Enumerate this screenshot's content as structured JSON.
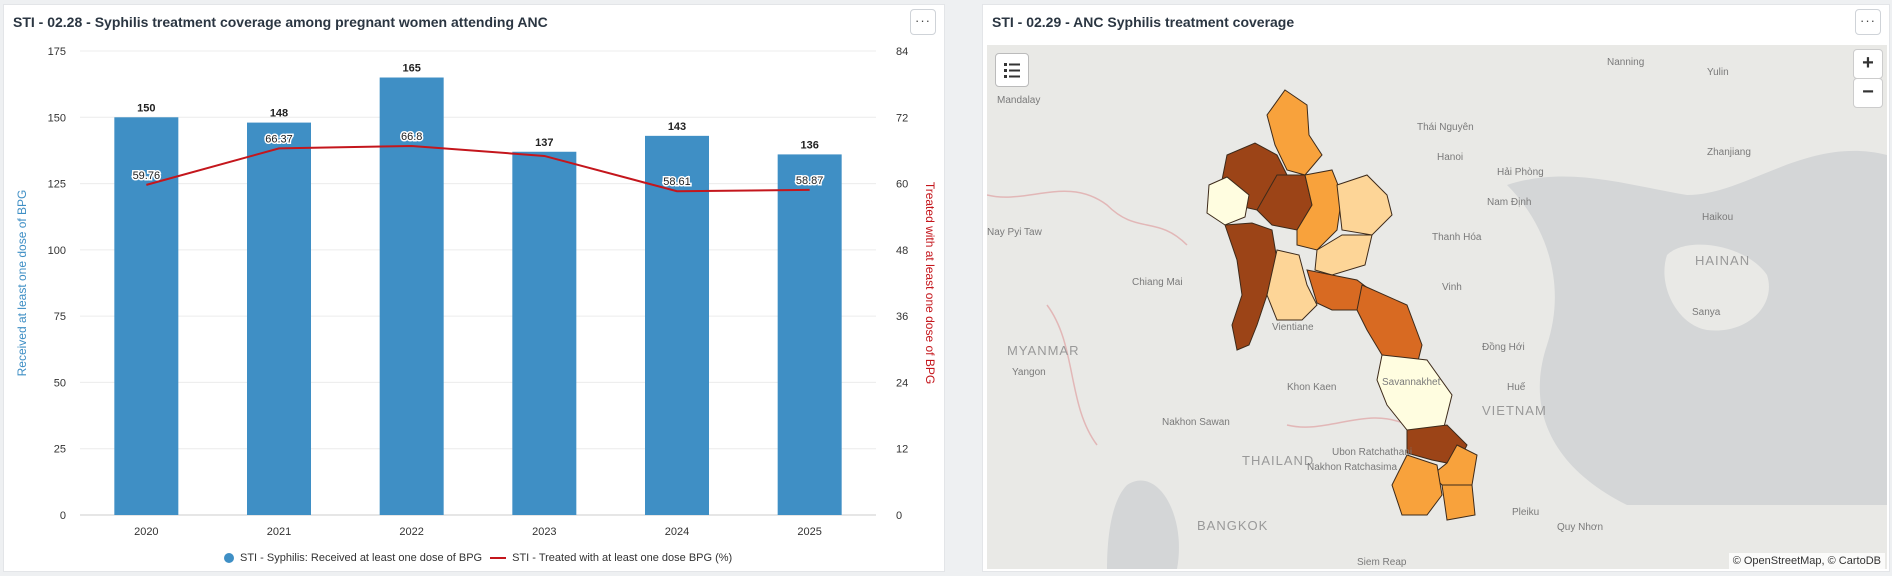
{
  "left_panel": {
    "title": "STI - 02.28 - Syphilis treatment coverage among pregnant women attending ANC",
    "menu_label": "···",
    "legend": {
      "series1": "STI - Syphilis: Received at least one dose of BPG",
      "series2": "STI - Treated with at least one dose BPG (%)"
    }
  },
  "chart_data": {
    "type": "bar",
    "categories": [
      "2020",
      "2021",
      "2022",
      "2023",
      "2024",
      "2025"
    ],
    "series": [
      {
        "name": "STI - Syphilis: Received at least one dose of BPG",
        "type": "bar",
        "axis": "left",
        "values": [
          150,
          148,
          165,
          137,
          143,
          136
        ],
        "color": "#3f8fc5"
      },
      {
        "name": "STI - Treated with at least one dose BPG (%)",
        "type": "line",
        "axis": "right",
        "values": [
          59.76,
          66.37,
          66.8,
          null,
          58.61,
          58.87
        ],
        "color": "#c4161c"
      }
    ],
    "line_point_2023": 65,
    "ylabel": "Received at least one dose of BPG",
    "ylabel_right": "Treated with at least one dose of BPG",
    "ylim": [
      0,
      175
    ],
    "yticks": [
      0,
      25,
      50,
      75,
      100,
      125,
      150,
      175
    ],
    "ylim_right": [
      0,
      84
    ],
    "yticks_right": [
      0,
      12,
      24,
      36,
      48,
      60,
      72,
      84
    ],
    "grid": true,
    "legend_position": "bottom"
  },
  "right_panel": {
    "title": "STI - 02.29 - ANC Syphilis treatment coverage",
    "menu_label": "···",
    "zoom_in": "+",
    "zoom_out": "−",
    "attribution": "© OpenStreetMap, © CartoDB",
    "places": [
      "Mandalay",
      "Nanning",
      "Yulin",
      "Thái Nguyên",
      "Hanoi",
      "Hải Phòng",
      "Zhanjiang",
      "Nay Pyi Taw",
      "Nam Định",
      "Thanh Hóa",
      "Haikou",
      "HAINAN",
      "Chiang Mai",
      "Vinh",
      "Sanya",
      "MYANMAR",
      "Yangon",
      "Vientiane",
      "Đồng Hới",
      "Khon Kaen",
      "Savannakhet",
      "Huế",
      "Nakhon Sawan",
      "VIETNAM",
      "Ubon Ratchathani",
      "THAILAND",
      "Nakhon Ratchasima",
      "BANGKOK",
      "Pleiku",
      "Quy Nhơn",
      "Siem Reap"
    ],
    "colors": {
      "darkest": "#9c4417",
      "dark": "#d86a22",
      "mid": "#f8a23c",
      "light": "#fdd597",
      "lightest": "#fffde0"
    }
  }
}
